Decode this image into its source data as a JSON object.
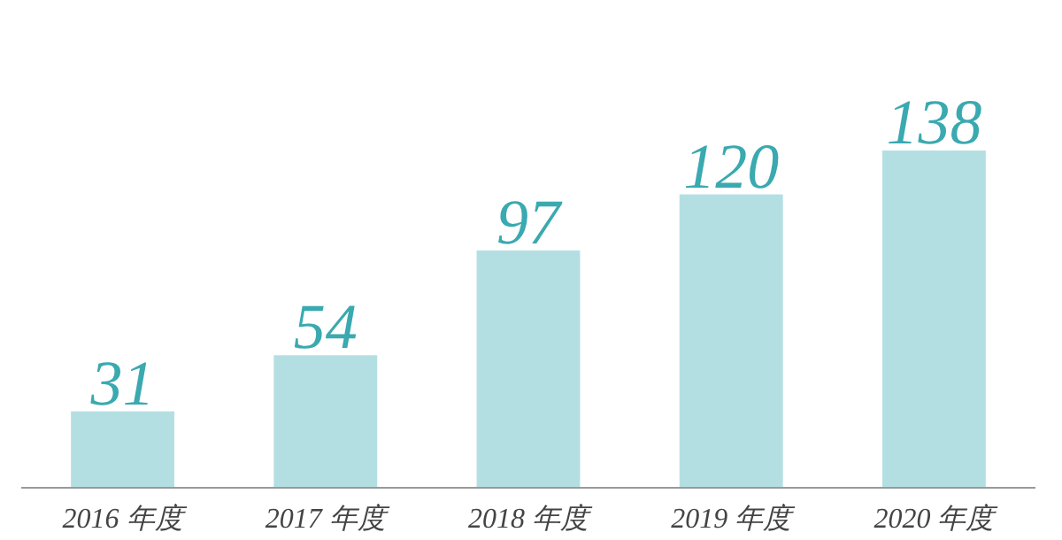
{
  "chart_data": {
    "type": "bar",
    "categories": [
      "2016 年度",
      "2017 年度",
      "2018 年度",
      "2019 年度",
      "2020 年度"
    ],
    "values": [
      31,
      54,
      97,
      120,
      138
    ],
    "color": "#b4dfe2",
    "data_labels": true
  }
}
